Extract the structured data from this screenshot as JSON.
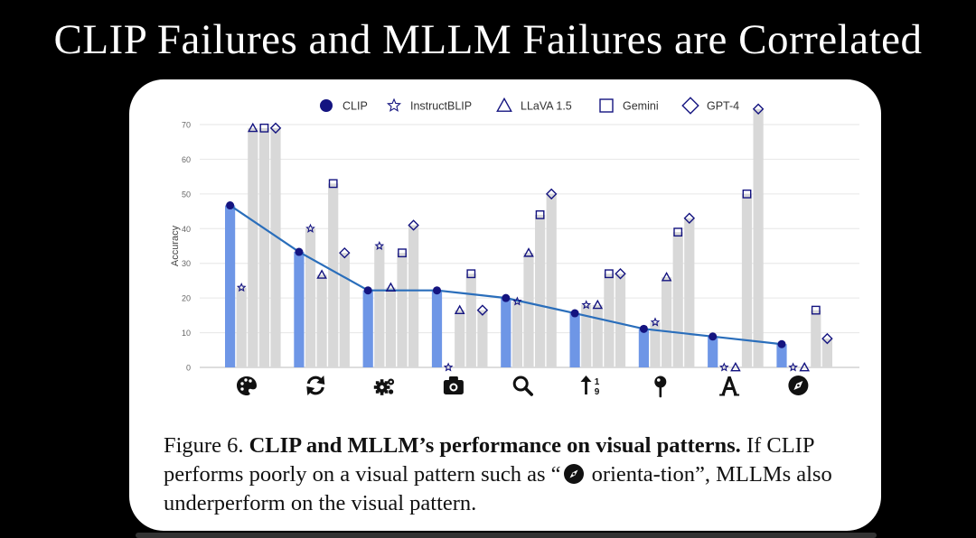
{
  "slide": {
    "title": "CLIP Failures and MLLM Failures are Correlated"
  },
  "caption": {
    "figure_label": "Figure 6.",
    "bold_title": "CLIP and MLLM’s performance on visual patterns.",
    "text_before": "If CLIP performs poorly on a visual pattern such as “",
    "text_after": "orienta-tion”, MLLMs also underperform on the visual pattern."
  },
  "colors": {
    "clip_bar": "#6e96e6",
    "other_bar": "#d8d8d8",
    "line": "#2a6ebb",
    "marker": "#141480",
    "grid": "#e6e6e6",
    "axis_text": "#666666"
  },
  "chart_data": {
    "type": "bar",
    "title": "",
    "xlabel": "",
    "ylabel": "Accuracy",
    "ylim": [
      0,
      70
    ],
    "yticks": [
      0,
      10,
      20,
      30,
      40,
      50,
      60,
      70
    ],
    "legend_position": "top",
    "categories": [
      {
        "name": "color",
        "icon": "palette-icon"
      },
      {
        "name": "viewpoint",
        "icon": "rotate-icon"
      },
      {
        "name": "state",
        "icon": "gears-icon"
      },
      {
        "name": "perspective",
        "icon": "camera-icon"
      },
      {
        "name": "presence",
        "icon": "search-icon"
      },
      {
        "name": "quantity",
        "icon": "sort-numeric-icon"
      },
      {
        "name": "position",
        "icon": "map-pin-icon"
      },
      {
        "name": "text",
        "icon": "text-a-icon"
      },
      {
        "name": "orientation",
        "icon": "compass-icon"
      }
    ],
    "series": [
      {
        "name": "CLIP",
        "marker": "circle",
        "values": [
          46.7,
          33.3,
          22.2,
          22.2,
          20,
          15.6,
          11.1,
          8.9,
          6.7
        ]
      },
      {
        "name": "InstructBLIP",
        "marker": "star",
        "values": [
          23,
          40,
          35,
          0,
          19,
          18,
          13,
          0,
          0
        ]
      },
      {
        "name": "LLaVA 1.5",
        "marker": "triangle",
        "values": [
          69,
          26.7,
          23,
          16.5,
          33,
          18,
          26,
          0,
          0
        ]
      },
      {
        "name": "Gemini",
        "marker": "square",
        "values": [
          69,
          53,
          33,
          27,
          44,
          27,
          39,
          50,
          16.5
        ]
      },
      {
        "name": "GPT-4",
        "marker": "diamond",
        "values": [
          69,
          33,
          41,
          16.5,
          50,
          27,
          43,
          74.5,
          8.3
        ]
      }
    ]
  }
}
